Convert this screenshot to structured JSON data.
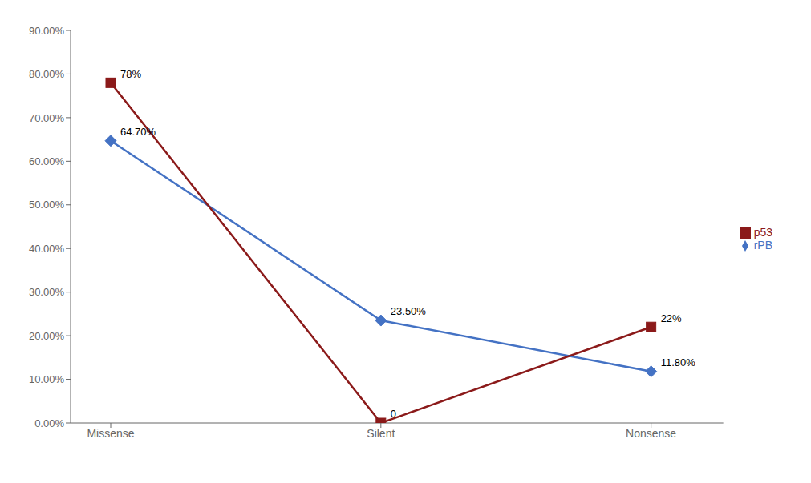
{
  "chart_data": {
    "type": "line",
    "categories": [
      "Missense",
      "Silent",
      "Nonsense"
    ],
    "series": [
      {
        "name": "rPB",
        "color": "#4472C4",
        "marker": "diamond",
        "values": [
          64.7,
          23.5,
          11.8
        ],
        "value_labels": [
          "64.70%",
          "23.50%",
          "11.80%"
        ]
      },
      {
        "name": "p53",
        "color": "#8B1A1A",
        "marker": "square",
        "values": [
          78.0,
          0.0,
          22.0
        ],
        "value_labels": [
          "78%",
          "0",
          "22%"
        ]
      }
    ],
    "ylim": [
      0,
      90
    ],
    "yticks": [
      {
        "value": 0,
        "label": "0.00%"
      },
      {
        "value": 10,
        "label": "10.00%"
      },
      {
        "value": 20,
        "label": "20.00%"
      },
      {
        "value": 30,
        "label": "30.00%"
      },
      {
        "value": 40,
        "label": "40.00%"
      },
      {
        "value": 50,
        "label": "50.00%"
      },
      {
        "value": 60,
        "label": "60.00%"
      },
      {
        "value": 70,
        "label": "70.00%"
      },
      {
        "value": 80,
        "label": "80.00%"
      },
      {
        "value": 90,
        "label": "90.00%"
      }
    ],
    "grid": false,
    "legend": "right",
    "data_labels": true
  }
}
